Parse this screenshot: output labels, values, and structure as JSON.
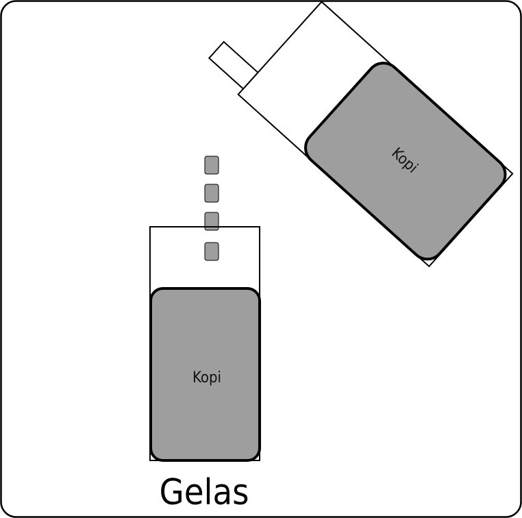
{
  "glass": {
    "label": "Gelas",
    "content_label": "Kopi"
  },
  "pouring_container": {
    "content_label": "Kopi"
  },
  "colors": {
    "liquid": "#9e9e9e",
    "outline": "#000000",
    "background": "#ffffff"
  }
}
